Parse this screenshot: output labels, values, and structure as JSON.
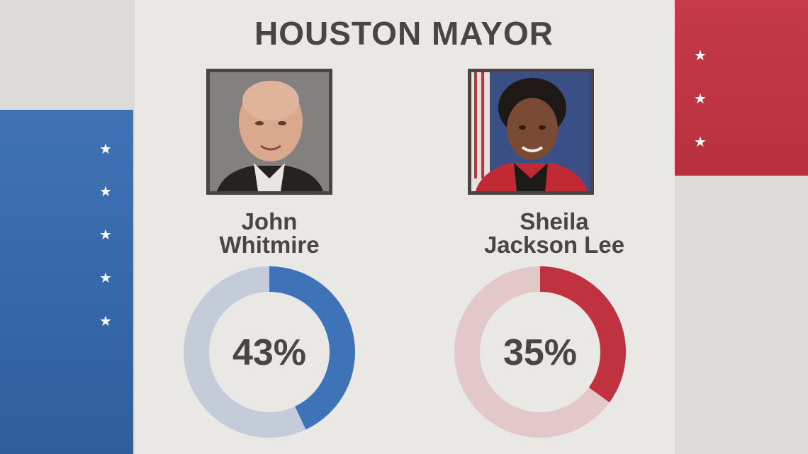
{
  "title": "HOUSTON MAYOR",
  "colors": {
    "blue": "#3f73b7",
    "blue_light": "#c3ccd8",
    "red": "#c0323f",
    "red_light": "#e3c8c9",
    "text": "#4a4543"
  },
  "decor": {
    "star_glyph": "★"
  },
  "candidates": [
    {
      "first": "John",
      "last": "Whitmire",
      "percent_label": "43%",
      "photo": "candidate-photo-whitmire"
    },
    {
      "first": "Sheila",
      "last": "Jackson Lee",
      "percent_label": "35%",
      "photo": "candidate-photo-jackson-lee"
    }
  ],
  "chart_data": {
    "type": "pie",
    "title": "HOUSTON MAYOR",
    "series": [
      {
        "name": "John Whitmire",
        "value": 43,
        "max": 100,
        "color": "#3f73b7",
        "track_color": "#c3ccd8"
      },
      {
        "name": "Sheila Jackson Lee",
        "value": 35,
        "max": 100,
        "color": "#c0323f",
        "track_color": "#e3c8c9"
      }
    ]
  }
}
